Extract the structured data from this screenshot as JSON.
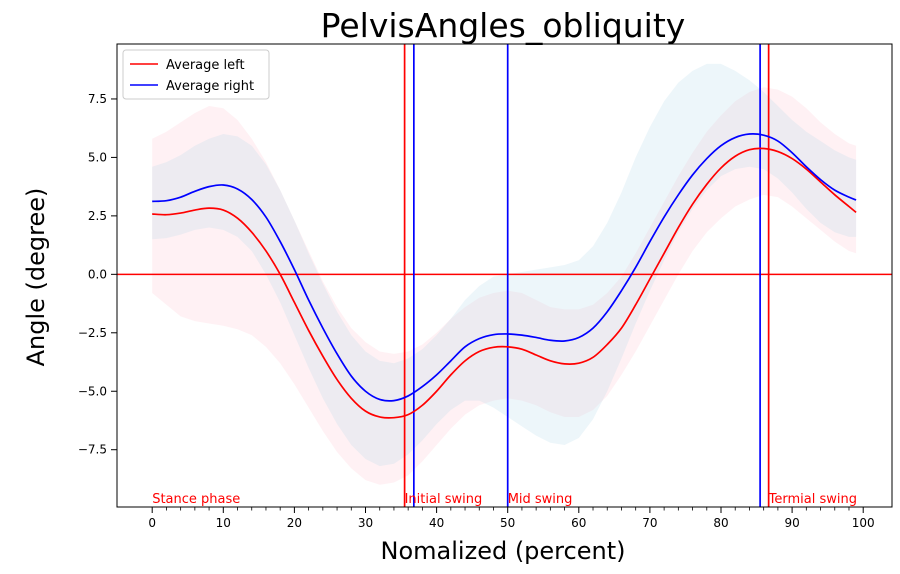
{
  "chart_data": {
    "type": "line",
    "title": "PelvisAngles_obliquity",
    "xlabel": "Nomalized (percent)",
    "ylabel": "Angle (degree)",
    "xlim": [
      -4.95,
      104.05
    ],
    "ylim": [
      -9.95,
      9.85
    ],
    "x_major_ticks": [
      0,
      10,
      20,
      30,
      40,
      50,
      60,
      70,
      80,
      90,
      100
    ],
    "x_minor_step": 2,
    "y_ticks": [
      -7.5,
      -5.0,
      -2.5,
      0.0,
      2.5,
      5.0,
      7.5
    ],
    "y_tick_labels": [
      "−7.5",
      "−5.0",
      "−2.5",
      "0.0",
      "2.5",
      "5.0",
      "7.5"
    ],
    "x": [
      0,
      2,
      4,
      6,
      8,
      10,
      12,
      14,
      16,
      18,
      20,
      22,
      24,
      26,
      28,
      30,
      32,
      34,
      36,
      38,
      40,
      42,
      44,
      46,
      48,
      50,
      52,
      54,
      56,
      58,
      60,
      62,
      64,
      66,
      68,
      70,
      72,
      74,
      76,
      78,
      80,
      82,
      84,
      86,
      88,
      90,
      92,
      94,
      96,
      98,
      99
    ],
    "series": [
      {
        "name": "Average left",
        "color": "#ff0000",
        "band_color": "#ffc0cb",
        "values": [
          2.58,
          2.55,
          2.62,
          2.75,
          2.83,
          2.75,
          2.4,
          1.8,
          1.0,
          0.0,
          -1.2,
          -2.4,
          -3.5,
          -4.5,
          -5.3,
          -5.85,
          -6.1,
          -6.13,
          -6.0,
          -5.6,
          -5.0,
          -4.3,
          -3.7,
          -3.3,
          -3.12,
          -3.1,
          -3.2,
          -3.45,
          -3.7,
          -3.83,
          -3.8,
          -3.55,
          -3.0,
          -2.3,
          -1.3,
          -0.2,
          0.9,
          2.0,
          3.0,
          3.85,
          4.55,
          5.05,
          5.33,
          5.38,
          5.25,
          4.95,
          4.5,
          3.95,
          3.4,
          2.9,
          2.65
        ],
        "band_low": [
          -0.8,
          -1.3,
          -1.8,
          -2.0,
          -2.1,
          -2.2,
          -2.35,
          -2.6,
          -3.1,
          -3.8,
          -4.7,
          -5.7,
          -6.7,
          -7.6,
          -8.3,
          -8.8,
          -9.0,
          -8.9,
          -8.6,
          -8.0,
          -7.3,
          -6.6,
          -6.0,
          -5.6,
          -5.4,
          -5.3,
          -5.4,
          -5.6,
          -5.9,
          -6.1,
          -6.1,
          -5.8,
          -5.2,
          -4.3,
          -3.3,
          -2.2,
          -1.1,
          0.0,
          1.0,
          1.8,
          2.4,
          2.9,
          3.2,
          3.4,
          3.3,
          2.9,
          2.4,
          1.9,
          1.4,
          1.0,
          0.9
        ],
        "band_high": [
          5.8,
          6.1,
          6.5,
          6.9,
          7.2,
          7.1,
          6.6,
          5.8,
          4.8,
          3.6,
          2.3,
          1.0,
          -0.3,
          -1.4,
          -2.3,
          -2.9,
          -3.3,
          -3.4,
          -3.3,
          -3.0,
          -2.5,
          -1.9,
          -1.4,
          -1.0,
          -0.8,
          -0.7,
          -0.8,
          -1.1,
          -1.4,
          -1.5,
          -1.5,
          -1.3,
          -0.8,
          -0.1,
          0.9,
          2.0,
          3.1,
          4.2,
          5.2,
          6.1,
          6.8,
          7.4,
          7.8,
          8.0,
          7.9,
          7.6,
          7.1,
          6.5,
          6.0,
          5.6,
          5.5
        ]
      },
      {
        "name": "Average right",
        "color": "#0000ff",
        "band_color": "#add8e6",
        "values": [
          3.12,
          3.15,
          3.3,
          3.55,
          3.75,
          3.82,
          3.65,
          3.2,
          2.45,
          1.4,
          0.2,
          -1.1,
          -2.3,
          -3.4,
          -4.35,
          -5.0,
          -5.35,
          -5.4,
          -5.2,
          -4.8,
          -4.3,
          -3.7,
          -3.1,
          -2.75,
          -2.58,
          -2.55,
          -2.6,
          -2.7,
          -2.82,
          -2.85,
          -2.7,
          -2.3,
          -1.6,
          -0.7,
          0.3,
          1.4,
          2.45,
          3.4,
          4.25,
          4.95,
          5.5,
          5.85,
          6.0,
          5.95,
          5.7,
          5.2,
          4.6,
          4.05,
          3.6,
          3.3,
          3.18
        ],
        "band_low": [
          1.5,
          1.55,
          1.7,
          1.9,
          2.0,
          1.9,
          1.6,
          1.0,
          0.0,
          -1.2,
          -2.6,
          -4.0,
          -5.3,
          -6.4,
          -7.3,
          -7.9,
          -8.2,
          -8.1,
          -7.7,
          -7.1,
          -6.4,
          -5.8,
          -5.4,
          -5.4,
          -5.7,
          -6.1,
          -6.5,
          -6.9,
          -7.2,
          -7.3,
          -7.0,
          -6.2,
          -5.0,
          -3.6,
          -2.1,
          -0.7,
          0.6,
          1.8,
          2.8,
          3.6,
          4.2,
          4.5,
          4.6,
          4.5,
          4.1,
          3.5,
          2.8,
          2.2,
          1.8,
          1.6,
          1.6
        ],
        "band_high": [
          4.6,
          4.8,
          5.1,
          5.5,
          5.8,
          6.0,
          5.9,
          5.5,
          4.7,
          3.6,
          2.3,
          0.9,
          -0.4,
          -1.6,
          -2.6,
          -3.3,
          -3.7,
          -3.8,
          -3.6,
          -3.2,
          -2.6,
          -1.9,
          -1.1,
          -0.5,
          -0.1,
          0.0,
          0.1,
          0.2,
          0.3,
          0.4,
          0.6,
          1.2,
          2.2,
          3.5,
          5.0,
          6.3,
          7.4,
          8.2,
          8.7,
          9.0,
          9.0,
          8.7,
          8.3,
          7.8,
          7.2,
          6.6,
          6.1,
          5.7,
          5.3,
          5.0,
          4.9
        ]
      }
    ],
    "hlines": [
      {
        "y": 0.0,
        "color": "#ff0000"
      }
    ],
    "vlines": [
      {
        "x": 35.5,
        "color": "#ff0000"
      },
      {
        "x": 36.8,
        "color": "#0000ff"
      },
      {
        "x": 50.0,
        "color": "#0000ff"
      },
      {
        "x": 85.5,
        "color": "#0000ff"
      },
      {
        "x": 86.7,
        "color": "#ff0000"
      }
    ],
    "phase_labels": [
      {
        "text": "Stance phase",
        "x": 0,
        "color": "#ff0000"
      },
      {
        "text": "Initial swing",
        "x": 35.5,
        "color": "#ff0000"
      },
      {
        "text": "Mid swing",
        "x": 50,
        "color": "#ff0000"
      },
      {
        "text": "Termial swing",
        "x": 86.7,
        "color": "#ff0000"
      }
    ],
    "legend_position": "upper-left",
    "grid": false
  }
}
